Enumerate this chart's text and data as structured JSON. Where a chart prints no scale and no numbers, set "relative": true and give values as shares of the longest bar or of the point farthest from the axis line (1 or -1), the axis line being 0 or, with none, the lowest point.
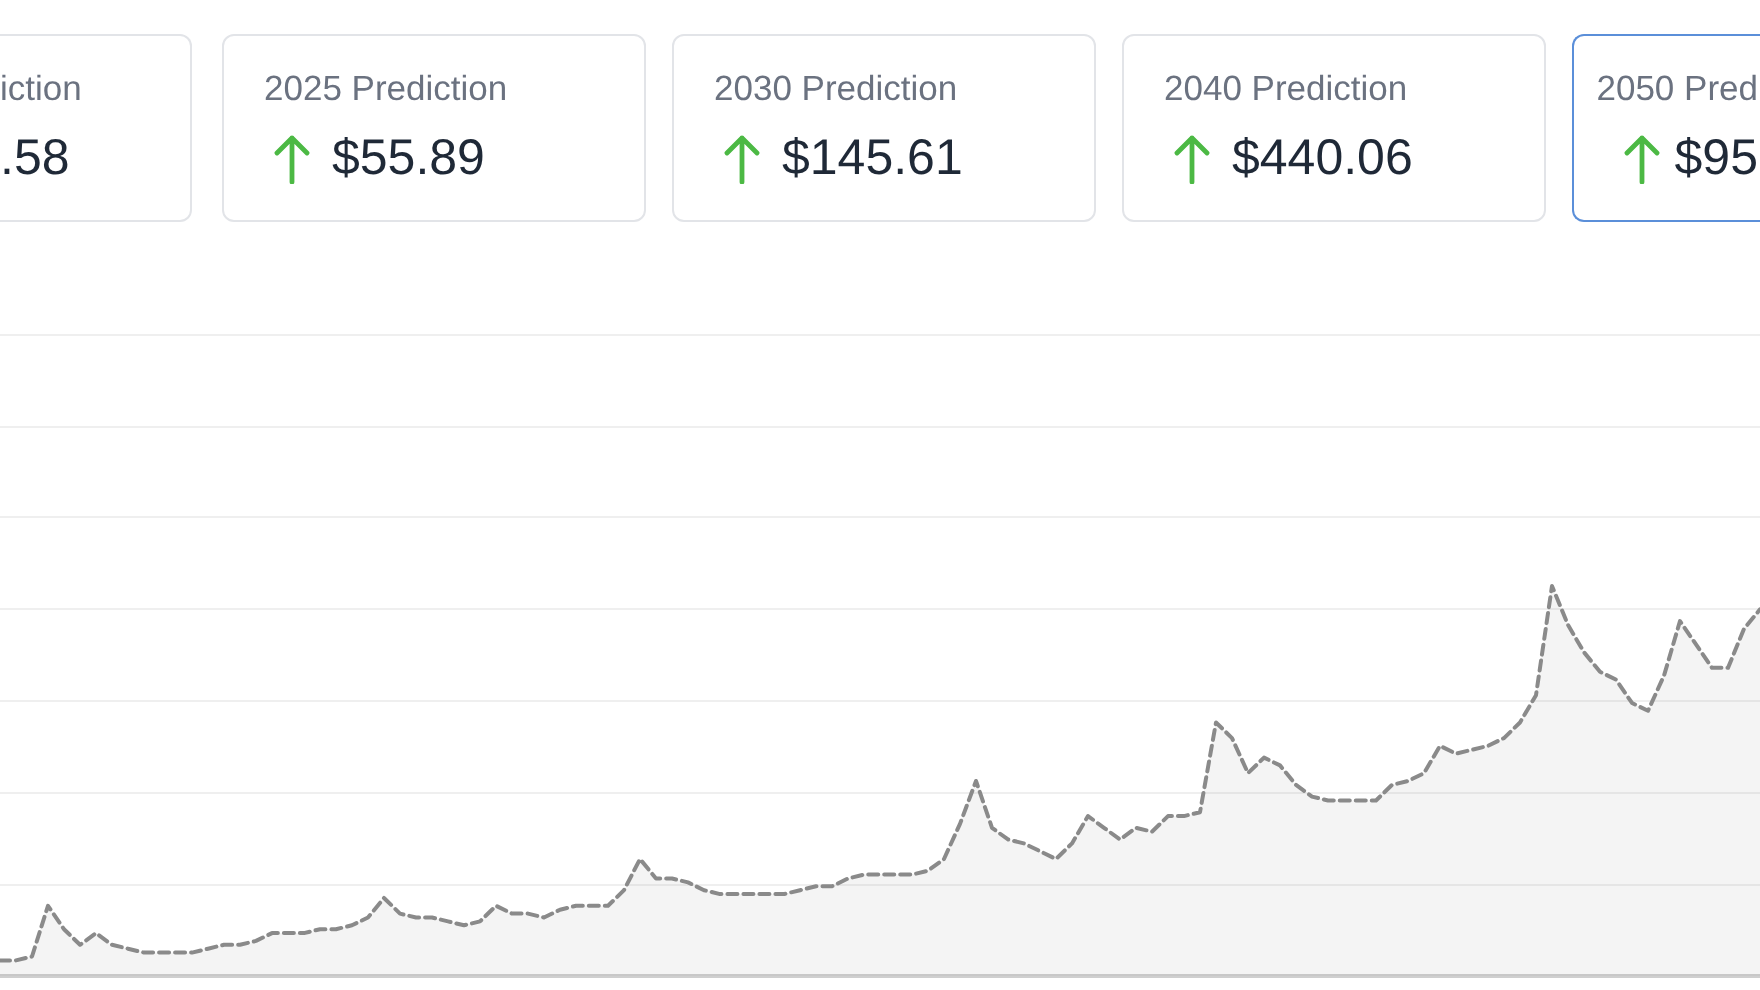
{
  "chart_data": [
    {
      "type": "other",
      "annotations": [
        "iction",
        ".58",
        "2025 Prediction",
        "$55.89",
        "2030 Prediction",
        "$145.61",
        "2040 Prediction",
        "$440.06",
        "2050 Pred",
        "$95"
      ]
    },
    {
      "type": "area",
      "categories": [
        null,
        null,
        null,
        null,
        null,
        null,
        null,
        null,
        null,
        null,
        null,
        null,
        null,
        null,
        null,
        null,
        null,
        null,
        null,
        null,
        null,
        null,
        null,
        null,
        null,
        null,
        null,
        null,
        null,
        null,
        null,
        null,
        null,
        null,
        null,
        null,
        null,
        null,
        null,
        null,
        null,
        null,
        null,
        null,
        null,
        null,
        null,
        null,
        null,
        null,
        null,
        null,
        null,
        null,
        null,
        null,
        null,
        null,
        null,
        null,
        null,
        null,
        null,
        null,
        null,
        null,
        null,
        null,
        null,
        null,
        null,
        null,
        null,
        null,
        null,
        null,
        null,
        null,
        null,
        null,
        null,
        null,
        null,
        null,
        null,
        null,
        null,
        null,
        null,
        null,
        null,
        null,
        null,
        null,
        null,
        null,
        null,
        null,
        null,
        null,
        null,
        null,
        null,
        null,
        null,
        null,
        null,
        null,
        null,
        null,
        null
      ],
      "values": [
        0.04,
        0.04,
        0.05,
        0.18,
        0.12,
        0.08,
        0.11,
        0.08,
        0.07,
        0.06,
        0.06,
        0.06,
        0.06,
        0.07,
        0.08,
        0.08,
        0.09,
        0.11,
        0.11,
        0.11,
        0.12,
        0.12,
        0.13,
        0.15,
        0.2,
        0.16,
        0.15,
        0.15,
        0.14,
        0.13,
        0.14,
        0.18,
        0.16,
        0.16,
        0.15,
        0.17,
        0.18,
        0.18,
        0.18,
        0.22,
        0.3,
        0.25,
        0.25,
        0.24,
        0.22,
        0.21,
        0.21,
        0.21,
        0.21,
        0.21,
        0.22,
        0.23,
        0.23,
        0.25,
        0.26,
        0.26,
        0.26,
        0.26,
        0.27,
        0.3,
        0.39,
        0.5,
        0.38,
        0.35,
        0.34,
        0.32,
        0.3,
        0.34,
        0.41,
        0.38,
        0.35,
        0.38,
        0.37,
        0.41,
        0.41,
        0.42,
        0.65,
        0.61,
        0.52,
        0.56,
        0.54,
        0.49,
        0.46,
        0.45,
        0.45,
        0.45,
        0.45,
        0.49,
        0.5,
        0.52,
        0.59,
        0.57,
        0.58,
        0.59,
        0.61,
        0.65,
        0.72,
        1,
        0.9,
        0.83,
        0.78,
        0.76,
        0.7,
        0.68,
        0.77,
        0.91,
        0.85,
        0.79,
        0.79,
        0.89,
        0.94
      ],
      "color": "#8a8a8a",
      "relative": true,
      "line_style": "dashed",
      "grid": "y",
      "tick_labels": false
    }
  ]
}
